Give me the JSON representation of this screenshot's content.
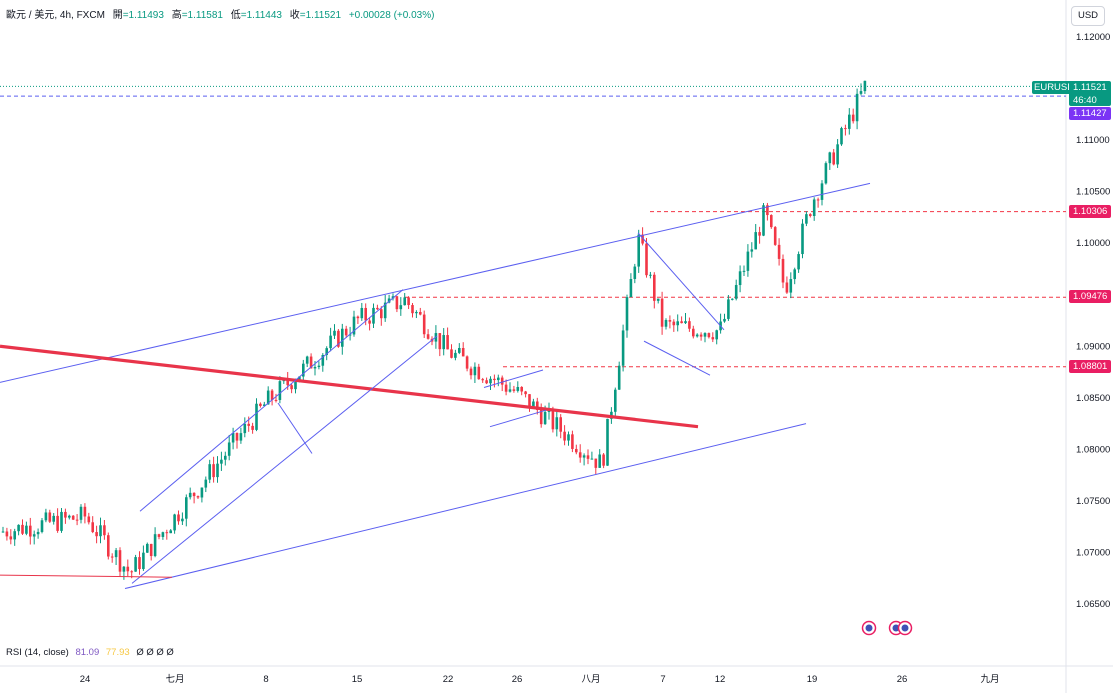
{
  "header": {
    "symbol": "歐元 / 美元, 4h, FXCM",
    "open_label": "開",
    "open": "=1.11493",
    "high_label": "高",
    "high": "=1.11581",
    "low_label": "低",
    "low": "=1.11443",
    "close_label": "收",
    "close": "=1.11521",
    "change": "+0.00028 (+0.03%)"
  },
  "currency_button": "USD",
  "rsi": {
    "label": "RSI (14, close)",
    "value1": "81.09",
    "value2": "77.93",
    "icons": "Ø Ø Ø Ø"
  },
  "colors": {
    "up": "#089981",
    "down": "#f23645",
    "line": "#5b5ff0",
    "trend": "#e8344a",
    "price_tag": "#089981",
    "pending_tag": "#7b34f5",
    "level_tag": "#e91e63"
  },
  "price_labels": {
    "symbol_tag": "EURUSD",
    "last": "1.11521",
    "countdown": "46:40",
    "marker": "1.11427",
    "levels": [
      "1.10306",
      "1.09476",
      "1.08801"
    ]
  },
  "chart_data": {
    "type": "candlestick",
    "title": "",
    "y_ticks": [
      "1.12000",
      "1.11000",
      "1.10500",
      "1.10000",
      "1.09500",
      "1.09000",
      "1.08500",
      "1.08000",
      "1.07500",
      "1.07000",
      "1.06500"
    ],
    "x_ticks": [
      "24",
      "七月",
      "8",
      "15",
      "22",
      "26",
      "八月",
      "7",
      "12",
      "19",
      "26",
      "九月"
    ],
    "ylim": [
      1.0615,
      1.1218
    ],
    "horizontal_levels": [
      1.10306,
      1.09476,
      1.08801
    ],
    "key_points": [
      {
        "x": "start",
        "y": 1.072
      },
      {
        "x": "24",
        "y": 1.0735
      },
      {
        "x": "七月",
        "y": 1.068
      },
      {
        "x": "8",
        "y": 1.0845
      },
      {
        "x": "15",
        "y": 1.0925
      },
      {
        "x": "18",
        "y": 1.0945
      },
      {
        "x": "22",
        "y": 1.0895
      },
      {
        "x": "26",
        "y": 1.0855
      },
      {
        "x": "八月",
        "y": 1.0785
      },
      {
        "x": "5",
        "y": 1.1005
      },
      {
        "x": "7",
        "y": 1.092
      },
      {
        "x": "12",
        "y": 1.0915
      },
      {
        "x": "15",
        "y": 1.103
      },
      {
        "x": "16",
        "y": 1.0955
      },
      {
        "x": "19",
        "y": 1.104
      },
      {
        "x": "23",
        "y": 1.11521
      }
    ]
  }
}
